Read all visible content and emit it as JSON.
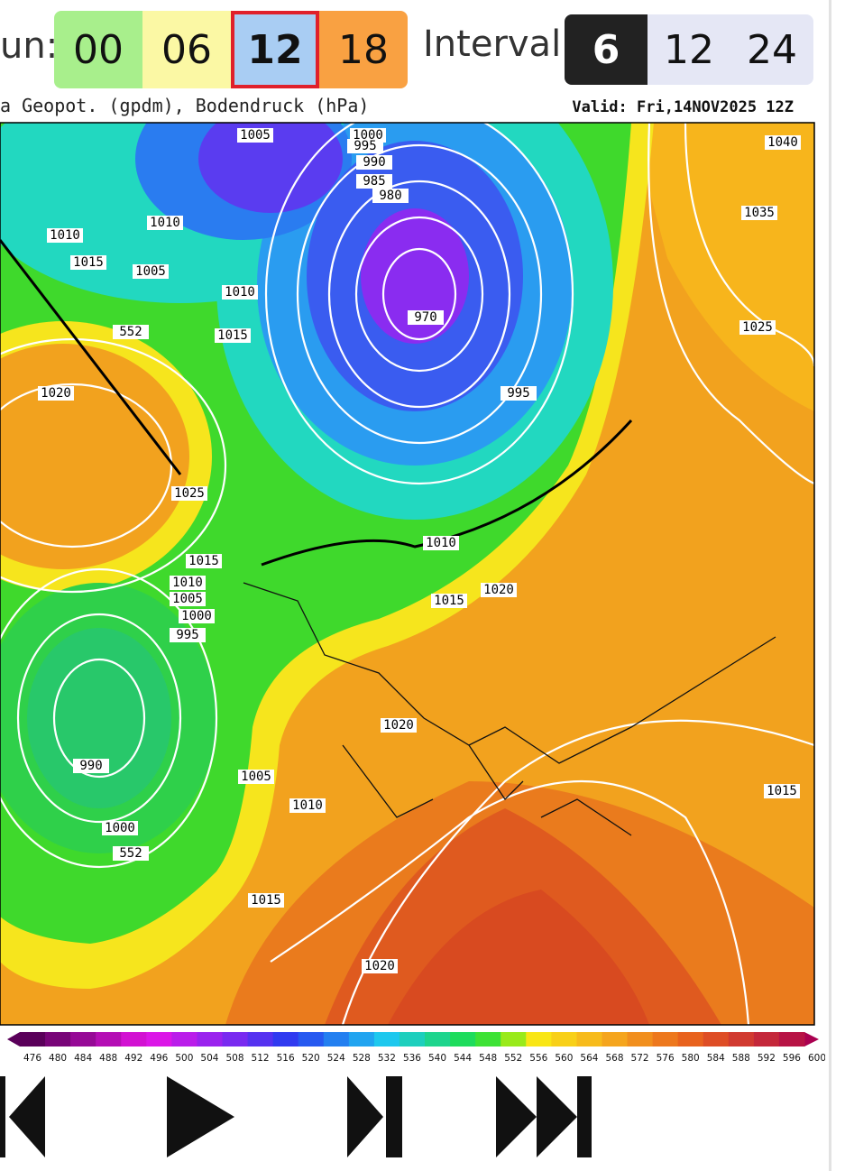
{
  "toolbar": {
    "run_label": "un:",
    "runs": [
      "00",
      "06",
      "12",
      "18"
    ],
    "interval_label": "Interval",
    "intervals": [
      "6",
      "12",
      "24"
    ]
  },
  "map": {
    "title": "a Geopot. (gpdm), Bodendruck (hPa)",
    "valid": "Valid: Fri,14NOV2025 12Z",
    "isobar_labels": [
      "1005",
      "1000",
      "995",
      "990",
      "985",
      "980",
      "1040",
      "1010",
      "1010",
      "1035",
      "1015",
      "1005",
      "1010",
      "970",
      "552",
      "1015",
      "1025",
      "1020",
      "995",
      "1025",
      "1010",
      "1015",
      "1010",
      "1020",
      "1015",
      "1005",
      "1000",
      "995",
      "1020",
      "990",
      "1005",
      "1015",
      "1010",
      "1000",
      "552",
      "1015",
      "1020"
    ],
    "colorbar_labels": [
      476,
      480,
      484,
      488,
      492,
      496,
      500,
      504,
      508,
      512,
      516,
      520,
      524,
      528,
      532,
      536,
      540,
      544,
      548,
      552,
      556,
      560,
      564,
      568,
      572,
      576,
      580,
      584,
      588,
      592,
      596,
      600
    ]
  }
}
